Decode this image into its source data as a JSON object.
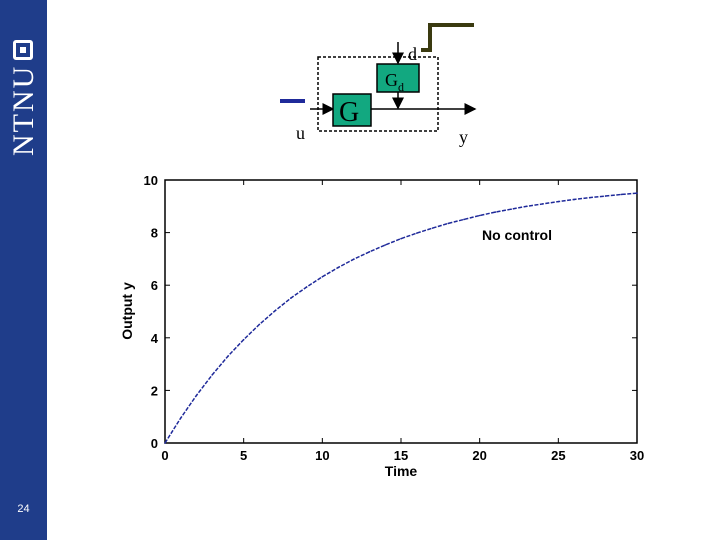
{
  "slide": {
    "logo_text": "NTNU",
    "page_number": "24"
  },
  "diagram": {
    "input_label": "u",
    "plant_label": "G",
    "disturbance_plant_label": "G",
    "disturbance_plant_subscript": "d",
    "disturbance_label": "d",
    "output_label": "y"
  },
  "chart_data": {
    "type": "line",
    "xlabel": "Time",
    "ylabel": "Output y",
    "annotation": "No control",
    "xlim": [
      0,
      30
    ],
    "ylim": [
      0,
      10
    ],
    "xticks": [
      0,
      5,
      10,
      15,
      20,
      25,
      30
    ],
    "yticks": [
      0,
      2,
      4,
      6,
      8,
      10
    ],
    "grid": false,
    "series": [
      {
        "color": "#1f2a9a",
        "style": "dashed",
        "x": [
          0,
          1,
          2,
          3,
          4,
          5,
          6,
          7,
          8,
          9,
          10,
          11,
          12,
          13,
          14,
          15,
          16,
          17,
          18,
          19,
          20,
          21,
          22,
          23,
          24,
          25,
          26,
          27,
          28,
          29,
          30
        ],
        "y": [
          0,
          0.95,
          1.81,
          2.59,
          3.3,
          3.93,
          4.51,
          5.03,
          5.51,
          5.93,
          6.32,
          6.67,
          6.99,
          7.27,
          7.53,
          7.77,
          7.98,
          8.17,
          8.35,
          8.5,
          8.65,
          8.78,
          8.89,
          9.0,
          9.09,
          9.18,
          9.26,
          9.33,
          9.39,
          9.45,
          9.5
        ]
      }
    ]
  }
}
